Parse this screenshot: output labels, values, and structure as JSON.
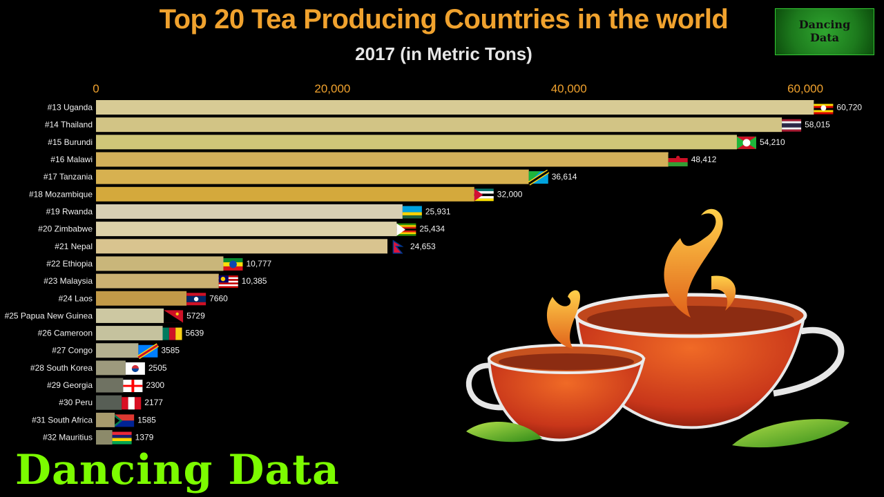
{
  "header": {
    "title": "Top 20 Tea Producing Countries in the world",
    "subtitle": "2017 (in Metric Tons)"
  },
  "logo": {
    "line1": "Dancing",
    "line2": "Data"
  },
  "brand": {
    "text": "Dancing Data"
  },
  "colors": {
    "title": "#f0a22e",
    "brand": "#7cfc00",
    "background": "#000000"
  },
  "chart_data": {
    "type": "bar",
    "orientation": "horizontal",
    "title": "Top 20 Tea Producing Countries in the world",
    "subtitle": "2017 (in Metric Tons)",
    "xlim": [
      0,
      60720
    ],
    "x_ticks": [
      "0",
      "20,000",
      "40,000",
      "60,000"
    ],
    "x_tick_values": [
      0,
      20000,
      40000,
      60000
    ],
    "categories": [
      "#13 Uganda",
      "#14 Thailand",
      "#15 Burundi",
      "#16 Malawi",
      "#17 Tanzania",
      "#18 Mozambique",
      "#19 Rwanda",
      "#20 Zimbabwe",
      "#21 Nepal",
      "#22 Ethiopia",
      "#23 Malaysia",
      "#24 Laos",
      "#25 Papua New Guinea",
      "#26 Cameroon",
      "#27 Congo",
      "#28 South Korea",
      "#29 Georgia",
      "#30 Peru",
      "#31 South Africa",
      "#32 Mauritius"
    ],
    "values": [
      60720,
      58015,
      54210,
      48412,
      36614,
      32000,
      25931,
      25434,
      24653,
      10777,
      10385,
      7660,
      5729,
      5639,
      3585,
      2505,
      2300,
      2177,
      1585,
      1379
    ],
    "value_labels": [
      "60,720",
      "58,015",
      "54,210",
      "48,412",
      "36,614",
      "32,000",
      "25,931",
      "25,434",
      "24,653",
      "10,777",
      "10,385",
      "7660",
      "5729",
      "5639",
      "3585",
      "2505",
      "2300",
      "2177",
      "1585",
      "1379"
    ],
    "bar_colors": [
      "#d8cb95",
      "#d2c485",
      "#cfc678",
      "#d3b05a",
      "#d7b150",
      "#d4a93c",
      "#d7ceb3",
      "#dcd1a9",
      "#d9c48f",
      "#c9b67a",
      "#cbb172",
      "#c29a48",
      "#cdc8a2",
      "#c5c29e",
      "#b4b08f",
      "#9d9a7d",
      "#6f7262",
      "#575e55",
      "#a89b6d",
      "#8c8a6a"
    ],
    "flags": [
      "uganda-flag",
      "thailand-flag",
      "burundi-flag",
      "malawi-flag",
      "tanzania-flag",
      "mozambique-flag",
      "rwanda-flag",
      "zimbabwe-flag",
      "nepal-flag",
      "ethiopia-flag",
      "malaysia-flag",
      "laos-flag",
      "papua-new-guinea-flag",
      "cameroon-flag",
      "congo-flag",
      "south-korea-flag",
      "georgia-flag",
      "peru-flag",
      "south-africa-flag",
      "mauritius-flag"
    ]
  }
}
